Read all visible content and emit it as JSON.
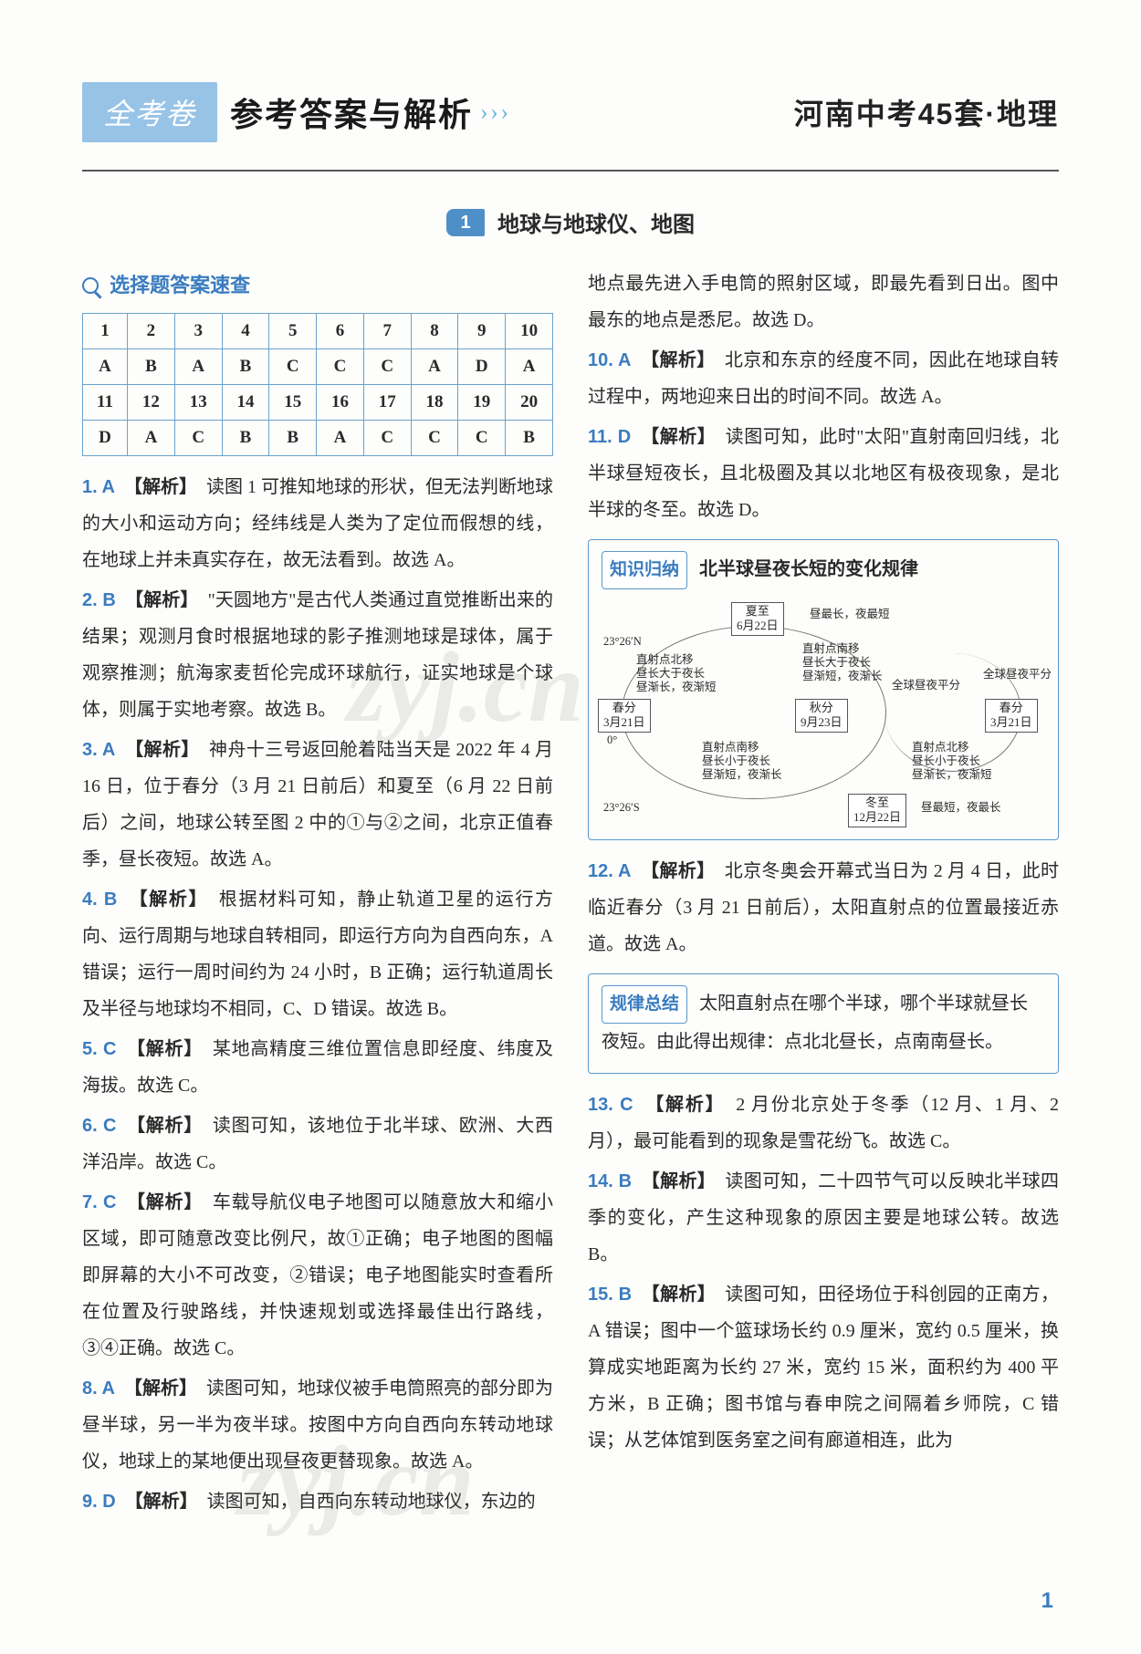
{
  "header": {
    "brand": "全考卷",
    "title": "参考答案与解析",
    "arrows": "› › ›",
    "subtitle": "河南中考45套·地理"
  },
  "section": {
    "number": "1",
    "name": "地球与地球仪、地图"
  },
  "quick": {
    "title": "选择题答案速查",
    "numsA": [
      "1",
      "2",
      "3",
      "4",
      "5",
      "6",
      "7",
      "8",
      "9",
      "10"
    ],
    "ansA": [
      "A",
      "B",
      "A",
      "B",
      "C",
      "C",
      "C",
      "A",
      "D",
      "A"
    ],
    "numsB": [
      "11",
      "12",
      "13",
      "14",
      "15",
      "16",
      "17",
      "18",
      "19",
      "20"
    ],
    "ansB": [
      "D",
      "A",
      "C",
      "B",
      "B",
      "A",
      "C",
      "C",
      "C",
      "B"
    ]
  },
  "left": {
    "q1": {
      "n": "1. A",
      "l": "【解析】",
      "t": "　读图 1 可推知地球的形状，但无法判断地球的大小和运动方向；经纬线是人类为了定位而假想的线，在地球上并未真实存在，故无法看到。故选 A。"
    },
    "q2": {
      "n": "2. B",
      "l": "【解析】",
      "t": "　\"天圆地方\"是古代人类通过直觉推断出来的结果；观测月食时根据地球的影子推测地球是球体，属于观察推测；航海家麦哲伦完成环球航行，证实地球是个球体，则属于实地考察。故选 B。"
    },
    "q3": {
      "n": "3. A",
      "l": "【解析】",
      "t": "　神舟十三号返回舱着陆当天是 2022 年 4 月 16 日，位于春分（3 月 21 日前后）和夏至（6 月 22 日前后）之间，地球公转至图 2 中的①与②之间，北京正值春季，昼长夜短。故选 A。"
    },
    "q4": {
      "n": "4. B",
      "l": "【解析】",
      "t": "　根据材料可知，静止轨道卫星的运行方向、运行周期与地球自转相同，即运行方向为自西向东，A 错误；运行一周时间约为 24 小时，B 正确；运行轨道周长及半径与地球均不相同，C、D 错误。故选 B。"
    },
    "q5": {
      "n": "5. C",
      "l": "【解析】",
      "t": "　某地高精度三维位置信息即经度、纬度及海拔。故选 C。"
    },
    "q6": {
      "n": "6. C",
      "l": "【解析】",
      "t": "　读图可知，该地位于北半球、欧洲、大西洋沿岸。故选 C。"
    },
    "q7": {
      "n": "7. C",
      "l": "【解析】",
      "t": "　车载导航仪电子地图可以随意放大和缩小区域，即可随意改变比例尺，故①正确；电子地图的图幅即屏幕的大小不可改变，②错误；电子地图能实时查看所在位置及行驶路线，并快速规划或选择最佳出行路线，③④正确。故选 C。"
    },
    "q8": {
      "n": "8. A",
      "l": "【解析】",
      "t": "　读图可知，地球仪被手电筒照亮的部分即为昼半球，另一半为夜半球。按图中方向自西向东转动地球仪，地球上的某地便出现昼夜更替现象。故选 A。"
    },
    "q9": {
      "n": "9. D",
      "l": "【解析】",
      "t": "　读图可知，自西向东转动地球仪，东边的"
    }
  },
  "right": {
    "q9c": "地点最先进入手电筒的照射区域，即最先看到日出。图中最东的地点是悉尼。故选 D。",
    "q10": {
      "n": "10. A",
      "l": "【解析】",
      "t": "　北京和东京的经度不同，因此在地球自转过程中，两地迎来日出的时间不同。故选 A。"
    },
    "q11": {
      "n": "11. D",
      "l": "【解析】",
      "t": "　读图可知，此时\"太阳\"直射南回归线，北半球昼短夜长，且北极圈及其以北地区有极夜现象，是北半球的冬至。故选 D。"
    },
    "box1": {
      "tag": "知识归纳",
      "title": "北半球昼夜长短的变化规律",
      "n_top": "夏至\n6月22日",
      "n_left": "春分\n3月21日",
      "n_right": "秋分\n9月23日",
      "n_rightfar": "春分\n3月21日",
      "n_bottom": "冬至\n12月22日",
      "lat_top": "23°26′N",
      "lat_bot": "23°26′S",
      "t_tl": "直射点北移\n昼长大于夜长\n昼渐长，夜渐短",
      "t_tr": "直射点南移\n昼长大于夜长\n昼渐短，夜渐长",
      "t_bl": "直射点南移\n昼长小于夜长\n昼渐短，夜渐长",
      "t_br": "直射点北移\n昼长小于夜长\n昼渐长，夜渐短",
      "t_left0": "0°",
      "t_top_note": "昼最长，夜最短",
      "t_bot_note": "昼最短，夜最长",
      "t_eq": "全球昼夜平分",
      "t_eq2": "全球昼夜平分"
    },
    "q12": {
      "n": "12. A",
      "l": "【解析】",
      "t": "　北京冬奥会开幕式当日为 2 月 4 日，此时临近春分（3 月 21 日前后），太阳直射点的位置最接近赤道。故选 A。"
    },
    "box2": {
      "tag": "规律总结",
      "text": "太阳直射点在哪个半球，哪个半球就昼长夜短。由此得出规律：点北北昼长，点南南昼长。"
    },
    "q13": {
      "n": "13. C",
      "l": "【解析】",
      "t": "　2 月份北京处于冬季（12 月、1 月、2 月），最可能看到的现象是雪花纷飞。故选 C。"
    },
    "q14": {
      "n": "14. B",
      "l": "【解析】",
      "t": "　读图可知，二十四节气可以反映北半球四季的变化，产生这种现象的原因主要是地球公转。故选 B。"
    },
    "q15": {
      "n": "15. B",
      "l": "【解析】",
      "t": "　读图可知，田径场位于科创园的正南方，A 错误；图中一个篮球场长约 0.9 厘米，宽约 0.5 厘米，换算成实地距离为长约 27 米，宽约 15 米，面积约为 400 平方米，B 正确；图书馆与春申院之间隔着乡师院，C 错误；从艺体馆到医务室之间有廊道相连，此为"
    }
  },
  "colors": {
    "accent": "#3a7cbf",
    "brand_bg": "#97c3e6",
    "table_border": "#6aa2ce",
    "rule": "#555555"
  },
  "page_number": "1"
}
